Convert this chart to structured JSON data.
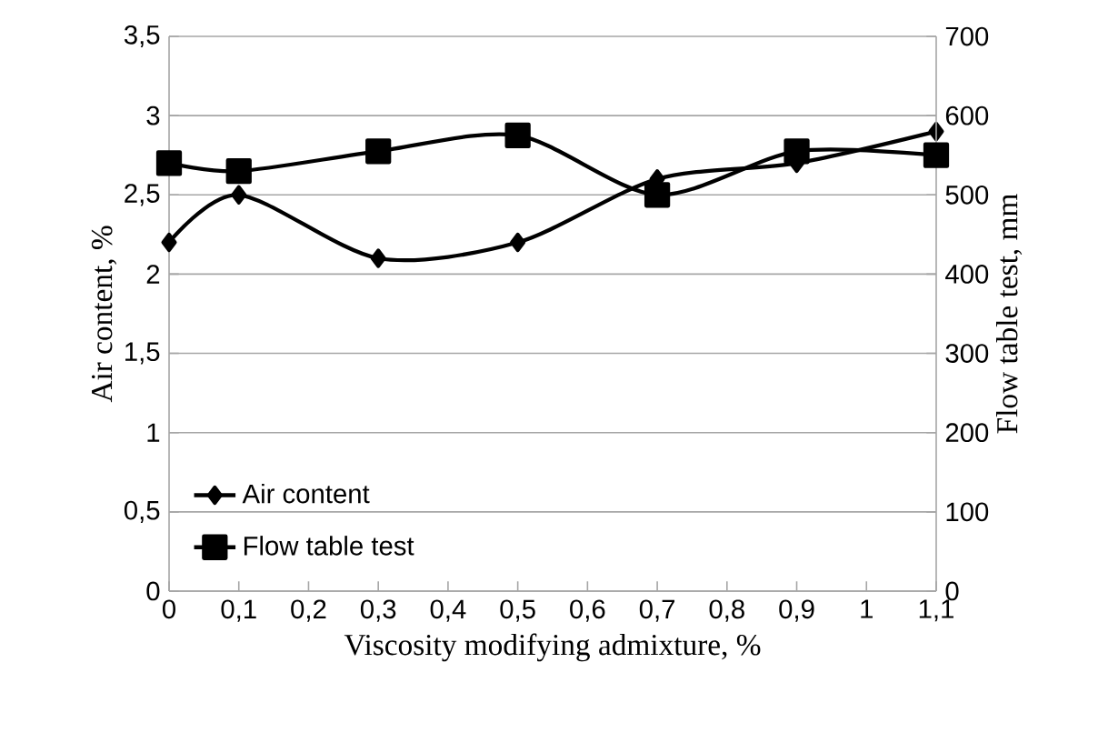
{
  "chart_data": {
    "type": "line",
    "xlabel": "Viscosity modifying admixture, %",
    "ylabel": "Air content, %",
    "y2label": "Flow table test, mm",
    "x": [
      0,
      0.1,
      0.3,
      0.5,
      0.7,
      0.9,
      1.1
    ],
    "series": [
      {
        "name": "Air content",
        "color": "#000000",
        "marker": "diamond",
        "values": [
          2.2,
          2.5,
          2.1,
          2.2,
          2.6,
          2.7,
          2.9
        ]
      },
      {
        "name": "Flow table test",
        "color": "#000000",
        "marker": "square",
        "axis": "y2",
        "values": [
          540,
          530,
          555,
          575,
          500,
          555,
          550
        ]
      }
    ],
    "xlim": [
      0,
      1.1
    ],
    "xticks": [
      0,
      {
        "value": 0.1,
        "label": "0,1"
      },
      {
        "value": 0.2,
        "label": "0,2"
      },
      {
        "value": 0.3,
        "label": "0,3"
      },
      {
        "value": 0.4,
        "label": "0,4"
      },
      {
        "value": 0.5,
        "label": "0,5"
      },
      {
        "value": 0.6,
        "label": "0,6"
      },
      {
        "value": 0.7,
        "label": "0,7"
      },
      {
        "value": 0.8,
        "label": "0,8"
      },
      {
        "value": 0.9,
        "label": "0,9"
      },
      1,
      {
        "value": 1.1,
        "label": "1,1"
      }
    ],
    "ylim": [
      0,
      3.5
    ],
    "yticks": [
      0,
      {
        "value": 0.5,
        "label": "0,5"
      },
      1,
      {
        "value": 1.5,
        "label": "1,5"
      },
      2,
      {
        "value": 2.5,
        "label": "2,5"
      },
      3,
      {
        "value": 3.5,
        "label": "3,5"
      }
    ],
    "y2lim": [
      0,
      700
    ],
    "y2ticks": [
      0,
      100,
      200,
      300,
      400,
      500,
      600,
      700
    ],
    "grid": "y",
    "legend": "bottom left",
    "line_style": "solid"
  }
}
